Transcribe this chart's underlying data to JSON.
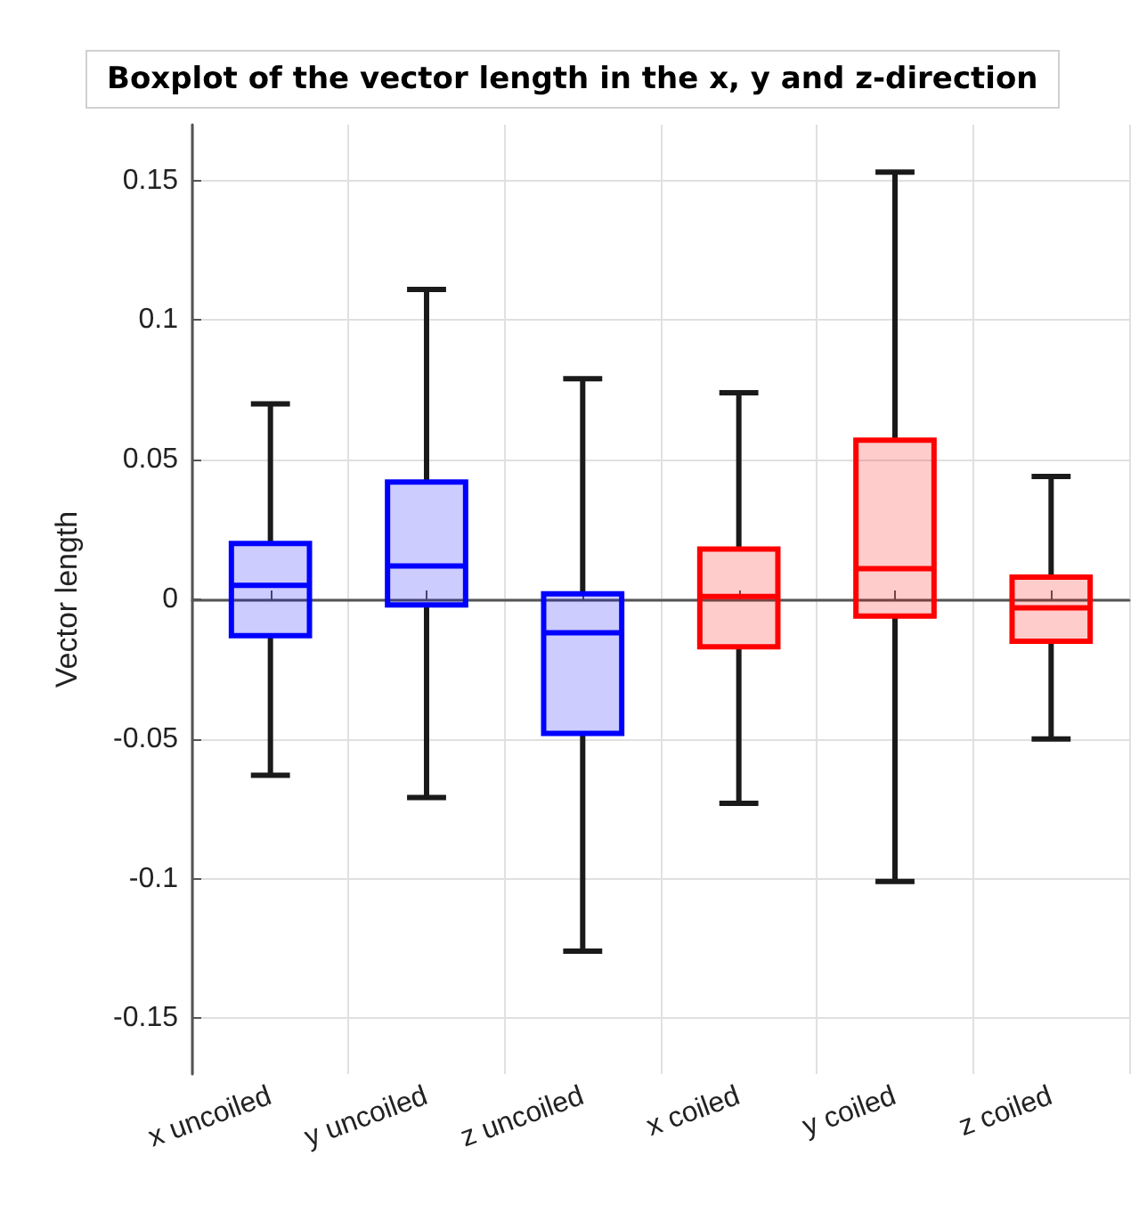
{
  "chart_data": {
    "type": "box",
    "title": "Boxplot of the vector length in the x, y and z-direction",
    "ylabel": "Vector length",
    "categories": [
      "x uncoiled",
      "y uncoiled",
      "z uncoiled",
      "x coiled",
      "y coiled",
      "z coiled"
    ],
    "colors": [
      "#0000ff",
      "#0000ff",
      "#0000ff",
      "#ff0000",
      "#ff0000",
      "#ff0000"
    ],
    "boxes": [
      {
        "low": -0.063,
        "q1": -0.013,
        "median": 0.005,
        "q3": 0.02,
        "high": 0.07
      },
      {
        "low": -0.071,
        "q1": -0.002,
        "median": 0.012,
        "q3": 0.042,
        "high": 0.111
      },
      {
        "low": -0.126,
        "q1": -0.048,
        "median": -0.012,
        "q3": 0.002,
        "high": 0.079
      },
      {
        "low": -0.073,
        "q1": -0.017,
        "median": 0.001,
        "q3": 0.018,
        "high": 0.074
      },
      {
        "low": -0.101,
        "q1": -0.006,
        "median": 0.011,
        "q3": 0.057,
        "high": 0.153
      },
      {
        "low": -0.05,
        "q1": -0.015,
        "median": -0.003,
        "q3": 0.008,
        "high": 0.044
      }
    ],
    "ylim": [
      -0.17,
      0.17
    ],
    "yticks": [
      -0.15,
      -0.1,
      -0.05,
      0,
      0.05,
      0.1,
      0.15
    ],
    "grid": true
  }
}
